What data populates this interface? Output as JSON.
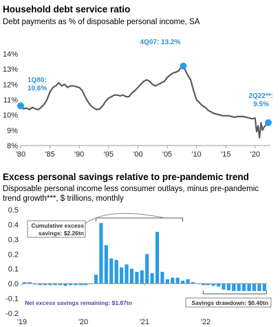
{
  "chart_data": [
    {
      "type": "line",
      "title": "Household debt service ratio",
      "subtitle": "Debt payments as % of disposable personal income, SA",
      "xlabel": "",
      "ylabel": "",
      "xlim": [
        1980,
        2022.6
      ],
      "ylim": [
        8,
        14
      ],
      "y_ticks": [
        8,
        9,
        10,
        11,
        12,
        13,
        14
      ],
      "y_tick_labels": [
        "8%",
        "9%",
        "10%",
        "11%",
        "12%",
        "13%",
        "14%"
      ],
      "x_ticks": [
        1980,
        1985,
        1990,
        1995,
        2000,
        2005,
        2010,
        2015,
        2020
      ],
      "x_tick_labels": [
        "'80",
        "'85",
        "'90",
        "'95",
        "'00",
        "'05",
        "'10",
        "'15",
        "'20"
      ],
      "color": "#5a5a5a",
      "marker_color": "#2a9ce6",
      "series": [
        {
          "x": [
            1980,
            1980.5,
            1981,
            1981.5,
            1982,
            1982.5,
            1983,
            1983.5,
            1984,
            1984.5,
            1985,
            1985.5,
            1986,
            1986.5,
            1987,
            1987.5,
            1988,
            1988.5,
            1989,
            1989.5,
            1990,
            1990.5,
            1991,
            1991.5,
            1992,
            1992.5,
            1993,
            1993.5,
            1994,
            1994.5,
            1995,
            1995.5,
            1996,
            1996.5,
            1997,
            1997.5,
            1998,
            1998.5,
            1999,
            1999.5,
            2000,
            2000.5,
            2001,
            2001.5,
            2002,
            2002.5,
            2003,
            2003.5,
            2004,
            2004.5,
            2005,
            2005.5,
            2006,
            2006.5,
            2007,
            2007.5,
            2008,
            2008.5,
            2009,
            2009.5,
            2010,
            2010.5,
            2011,
            2011.5,
            2012,
            2012.5,
            2013,
            2013.5,
            2014,
            2014.5,
            2015,
            2015.5,
            2016,
            2016.5,
            2017,
            2017.5,
            2018,
            2018.5,
            2019,
            2019.5,
            2020,
            2020.25,
            2020.5,
            2020.75,
            2021,
            2021.25,
            2021.5,
            2021.75,
            2022,
            2022.25
          ],
          "values": [
            10.6,
            10.4,
            10.45,
            10.35,
            10.5,
            10.4,
            10.35,
            10.5,
            10.7,
            11.0,
            11.5,
            11.8,
            11.9,
            12.1,
            11.9,
            12.0,
            11.8,
            11.9,
            11.9,
            11.85,
            11.8,
            11.6,
            11.2,
            10.85,
            10.6,
            10.45,
            10.35,
            10.4,
            10.6,
            10.9,
            11.1,
            11.2,
            11.3,
            11.3,
            11.25,
            11.3,
            11.2,
            11.2,
            11.45,
            11.6,
            11.8,
            12.0,
            12.2,
            12.3,
            12.2,
            12.0,
            11.9,
            12.0,
            12.1,
            12.2,
            12.45,
            12.6,
            12.75,
            12.8,
            12.9,
            13.2,
            13.0,
            12.6,
            12.3,
            11.6,
            11.0,
            10.8,
            10.6,
            10.5,
            10.3,
            10.2,
            10.1,
            10.05,
            10.0,
            9.95,
            9.95,
            9.95,
            9.9,
            9.85,
            9.9,
            9.9,
            9.9,
            9.85,
            9.8,
            9.75,
            9.8,
            8.9,
            9.3,
            8.5,
            9.5,
            9.0,
            9.2,
            9.3,
            9.45,
            9.5
          ]
        }
      ],
      "annotations": [
        {
          "text": "1Q80:",
          "value": "10.6%",
          "x": 1980,
          "y": 10.6
        },
        {
          "text": "4Q07: 13.2%",
          "x": 2007.75,
          "y": 13.2
        },
        {
          "text": "2Q22**:",
          "value": "9.5%",
          "x": 2022.25,
          "y": 9.5
        }
      ]
    },
    {
      "type": "bar",
      "title": "Excess personal savings relative to pre-pandemic trend",
      "subtitle": "Disposable personal income less consumer outlays, minus pre-pandemic trend growth***, $ trillions, monthly",
      "xlabel": "",
      "ylabel": "",
      "ylim": [
        -0.2,
        0.5
      ],
      "y_ticks": [
        -0.2,
        -0.1,
        0.0,
        0.1,
        0.2,
        0.3,
        0.4,
        0.5
      ],
      "y_tick_labels": [
        "-0.2",
        "-0.1",
        "0.0",
        "0.1",
        "0.2",
        "0.3",
        "0.4",
        "0.5"
      ],
      "x_ticks": [
        "'19",
        "'20",
        "'21",
        "'22"
      ],
      "color": "#2a9ce6",
      "categories": [
        "Jan-19",
        "Feb-19",
        "Mar-19",
        "Apr-19",
        "May-19",
        "Jun-19",
        "Jul-19",
        "Aug-19",
        "Sep-19",
        "Oct-19",
        "Nov-19",
        "Dec-19",
        "Jan-20",
        "Feb-20",
        "Mar-20",
        "Apr-20",
        "May-20",
        "Jun-20",
        "Jul-20",
        "Aug-20",
        "Sep-20",
        "Oct-20",
        "Nov-20",
        "Dec-20",
        "Jan-21",
        "Feb-21",
        "Mar-21",
        "Apr-21",
        "May-21",
        "Jun-21",
        "Jul-21",
        "Aug-21",
        "Sep-21",
        "Oct-21",
        "Nov-21",
        "Dec-21",
        "Jan-22",
        "Feb-22",
        "Mar-22",
        "Apr-22",
        "May-22",
        "Jun-22",
        "Jul-22",
        "Aug-22",
        "Sep-22",
        "Oct-22",
        "Nov-22",
        "Dec-22"
      ],
      "values": [
        0.01,
        0.01,
        -0.005,
        -0.01,
        -0.01,
        -0.01,
        -0.01,
        -0.01,
        -0.015,
        -0.01,
        -0.01,
        -0.01,
        -0.01,
        0.0,
        0.06,
        0.41,
        0.26,
        0.17,
        0.16,
        0.11,
        0.13,
        0.1,
        0.08,
        0.09,
        0.2,
        0.07,
        0.35,
        0.08,
        0.03,
        0.04,
        0.04,
        0.02,
        0.03,
        0.01,
        0.0,
        -0.01,
        -0.01,
        -0.015,
        -0.02,
        -0.04,
        -0.045,
        -0.05,
        -0.05,
        -0.05,
        -0.05,
        -0.05,
        -0.05,
        -0.05
      ],
      "annotations": [
        {
          "lines": [
            "Cumulative excess",
            "savings: $2.26tn"
          ]
        },
        {
          "text": "Net excess savings remaining: $1.87tn"
        },
        {
          "text": "Savings drawdown: $0.40tn"
        }
      ]
    }
  ]
}
